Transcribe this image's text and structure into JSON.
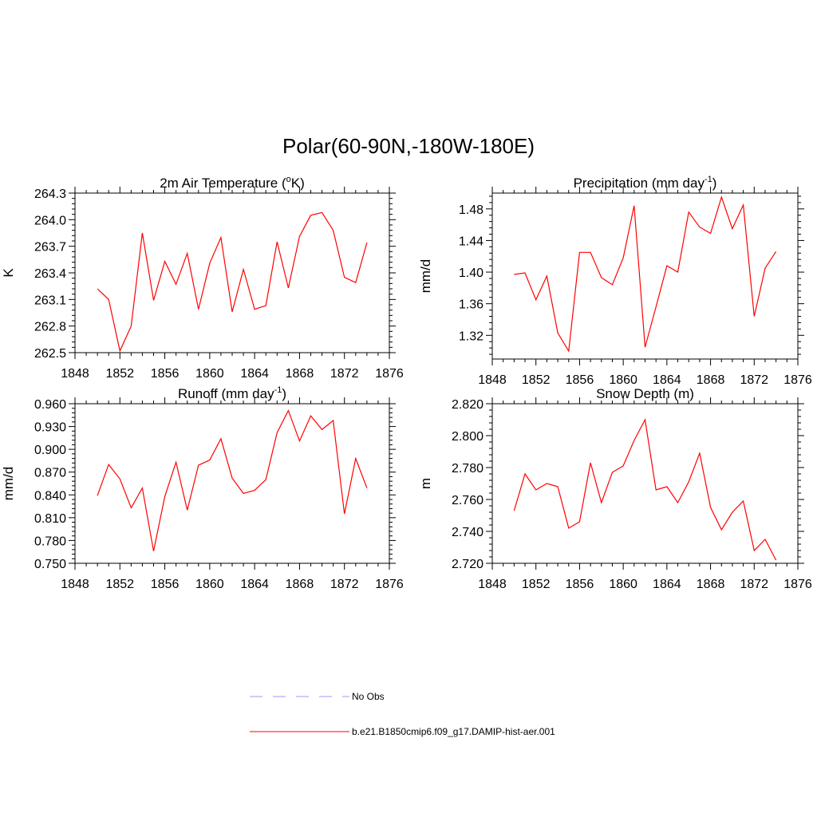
{
  "figure": {
    "title": "Polar(60-90N,-180W-180E)"
  },
  "legend": {
    "entries": [
      {
        "label": "No Obs",
        "color": "#9999ff",
        "dashed": true
      },
      {
        "label": "b.e21.B1850cmip6.f09_g17.DAMIP-hist-aer.001",
        "color": "#ff0000",
        "dashed": false
      }
    ]
  },
  "chart_data": [
    {
      "type": "line",
      "title": "2m Air Temperature (oK)",
      "title_main": "2m Air Temperature (",
      "title_sup": "o",
      "title_tail": "K)",
      "ylabel": "K",
      "xlim": [
        1848,
        1876
      ],
      "xticks": [
        1848,
        1852,
        1856,
        1860,
        1864,
        1868,
        1872,
        1876
      ],
      "ylim": [
        262.5,
        264.3
      ],
      "yticks": [
        "262.5",
        "262.8",
        "263.1",
        "263.4",
        "263.7",
        "264.0",
        "264.3"
      ],
      "x": [
        1850,
        1851,
        1852,
        1853,
        1854,
        1855,
        1856,
        1857,
        1858,
        1859,
        1860,
        1861,
        1862,
        1863,
        1864,
        1865,
        1866,
        1867,
        1868,
        1869,
        1870,
        1871,
        1872,
        1873,
        1874
      ],
      "series": [
        {
          "name": "b.e21.B1850cmip6.f09_g17.DAMIP-hist-aer.001",
          "color": "#ff0000",
          "values": [
            263.22,
            263.1,
            262.52,
            262.8,
            263.85,
            263.09,
            263.53,
            263.27,
            263.62,
            262.99,
            263.51,
            263.8,
            262.96,
            263.44,
            262.99,
            263.03,
            263.75,
            263.23,
            263.81,
            264.05,
            264.08,
            263.88,
            263.35,
            263.29,
            263.74
          ]
        }
      ]
    },
    {
      "type": "line",
      "title": "Precipitation (mm day-1)",
      "title_main": "Precipitation (mm day",
      "title_sup": "-1",
      "title_tail": ")",
      "ylabel": "mm/d",
      "xlim": [
        1848,
        1876
      ],
      "xticks": [
        1848,
        1852,
        1856,
        1860,
        1864,
        1868,
        1872,
        1876
      ],
      "ylim": [
        1.29,
        1.5
      ],
      "yticks": [
        "1.32",
        "1.36",
        "1.40",
        "1.44",
        "1.48"
      ],
      "x": [
        1850,
        1851,
        1852,
        1853,
        1854,
        1855,
        1856,
        1857,
        1858,
        1859,
        1860,
        1861,
        1862,
        1863,
        1864,
        1865,
        1866,
        1867,
        1868,
        1869,
        1870,
        1871,
        1872,
        1873,
        1874
      ],
      "series": [
        {
          "name": "b.e21.B1850cmip6.f09_g17.DAMIP-hist-aer.001",
          "color": "#ff0000",
          "values": [
            1.397,
            1.399,
            1.365,
            1.395,
            1.323,
            1.3,
            1.425,
            1.425,
            1.393,
            1.384,
            1.418,
            1.484,
            1.305,
            1.356,
            1.408,
            1.4,
            1.476,
            1.457,
            1.449,
            1.495,
            1.455,
            1.485,
            1.344,
            1.405,
            1.426
          ]
        }
      ]
    },
    {
      "type": "line",
      "title": "Runoff (mm day-1)",
      "title_main": "Runoff (mm day",
      "title_sup": "-1",
      "title_tail": ")",
      "ylabel": "mm/d",
      "xlim": [
        1848,
        1876
      ],
      "xticks": [
        1848,
        1852,
        1856,
        1860,
        1864,
        1868,
        1872,
        1876
      ],
      "ylim": [
        0.75,
        0.96
      ],
      "yticks": [
        "0.750",
        "0.780",
        "0.810",
        "0.840",
        "0.870",
        "0.900",
        "0.930",
        "0.960"
      ],
      "x": [
        1850,
        1851,
        1852,
        1853,
        1854,
        1855,
        1856,
        1857,
        1858,
        1859,
        1860,
        1861,
        1862,
        1863,
        1864,
        1865,
        1866,
        1867,
        1868,
        1869,
        1870,
        1871,
        1872,
        1873,
        1874
      ],
      "series": [
        {
          "name": "b.e21.B1850cmip6.f09_g17.DAMIP-hist-aer.001",
          "color": "#ff0000",
          "values": [
            0.839,
            0.88,
            0.861,
            0.823,
            0.849,
            0.766,
            0.838,
            0.883,
            0.82,
            0.879,
            0.886,
            0.914,
            0.862,
            0.842,
            0.846,
            0.86,
            0.922,
            0.951,
            0.911,
            0.944,
            0.926,
            0.938,
            0.815,
            0.888,
            0.849
          ]
        }
      ]
    },
    {
      "type": "line",
      "title": "Snow Depth (m)",
      "title_main": "Snow Depth (m)",
      "title_sup": "",
      "title_tail": "",
      "ylabel": "m",
      "xlim": [
        1848,
        1876
      ],
      "xticks": [
        1848,
        1852,
        1856,
        1860,
        1864,
        1868,
        1872,
        1876
      ],
      "ylim": [
        2.72,
        2.82
      ],
      "yticks": [
        "2.720",
        "2.740",
        "2.760",
        "2.780",
        "2.800",
        "2.820"
      ],
      "x": [
        1850,
        1851,
        1852,
        1853,
        1854,
        1855,
        1856,
        1857,
        1858,
        1859,
        1860,
        1861,
        1862,
        1863,
        1864,
        1865,
        1866,
        1867,
        1868,
        1869,
        1870,
        1871,
        1872,
        1873,
        1874
      ],
      "series": [
        {
          "name": "b.e21.B1850cmip6.f09_g17.DAMIP-hist-aer.001",
          "color": "#ff0000",
          "values": [
            2.753,
            2.776,
            2.766,
            2.77,
            2.768,
            2.742,
            2.746,
            2.783,
            2.758,
            2.777,
            2.781,
            2.797,
            2.81,
            2.766,
            2.768,
            2.758,
            2.771,
            2.789,
            2.755,
            2.741,
            2.752,
            2.759,
            2.728,
            2.735,
            2.722
          ]
        }
      ]
    }
  ]
}
